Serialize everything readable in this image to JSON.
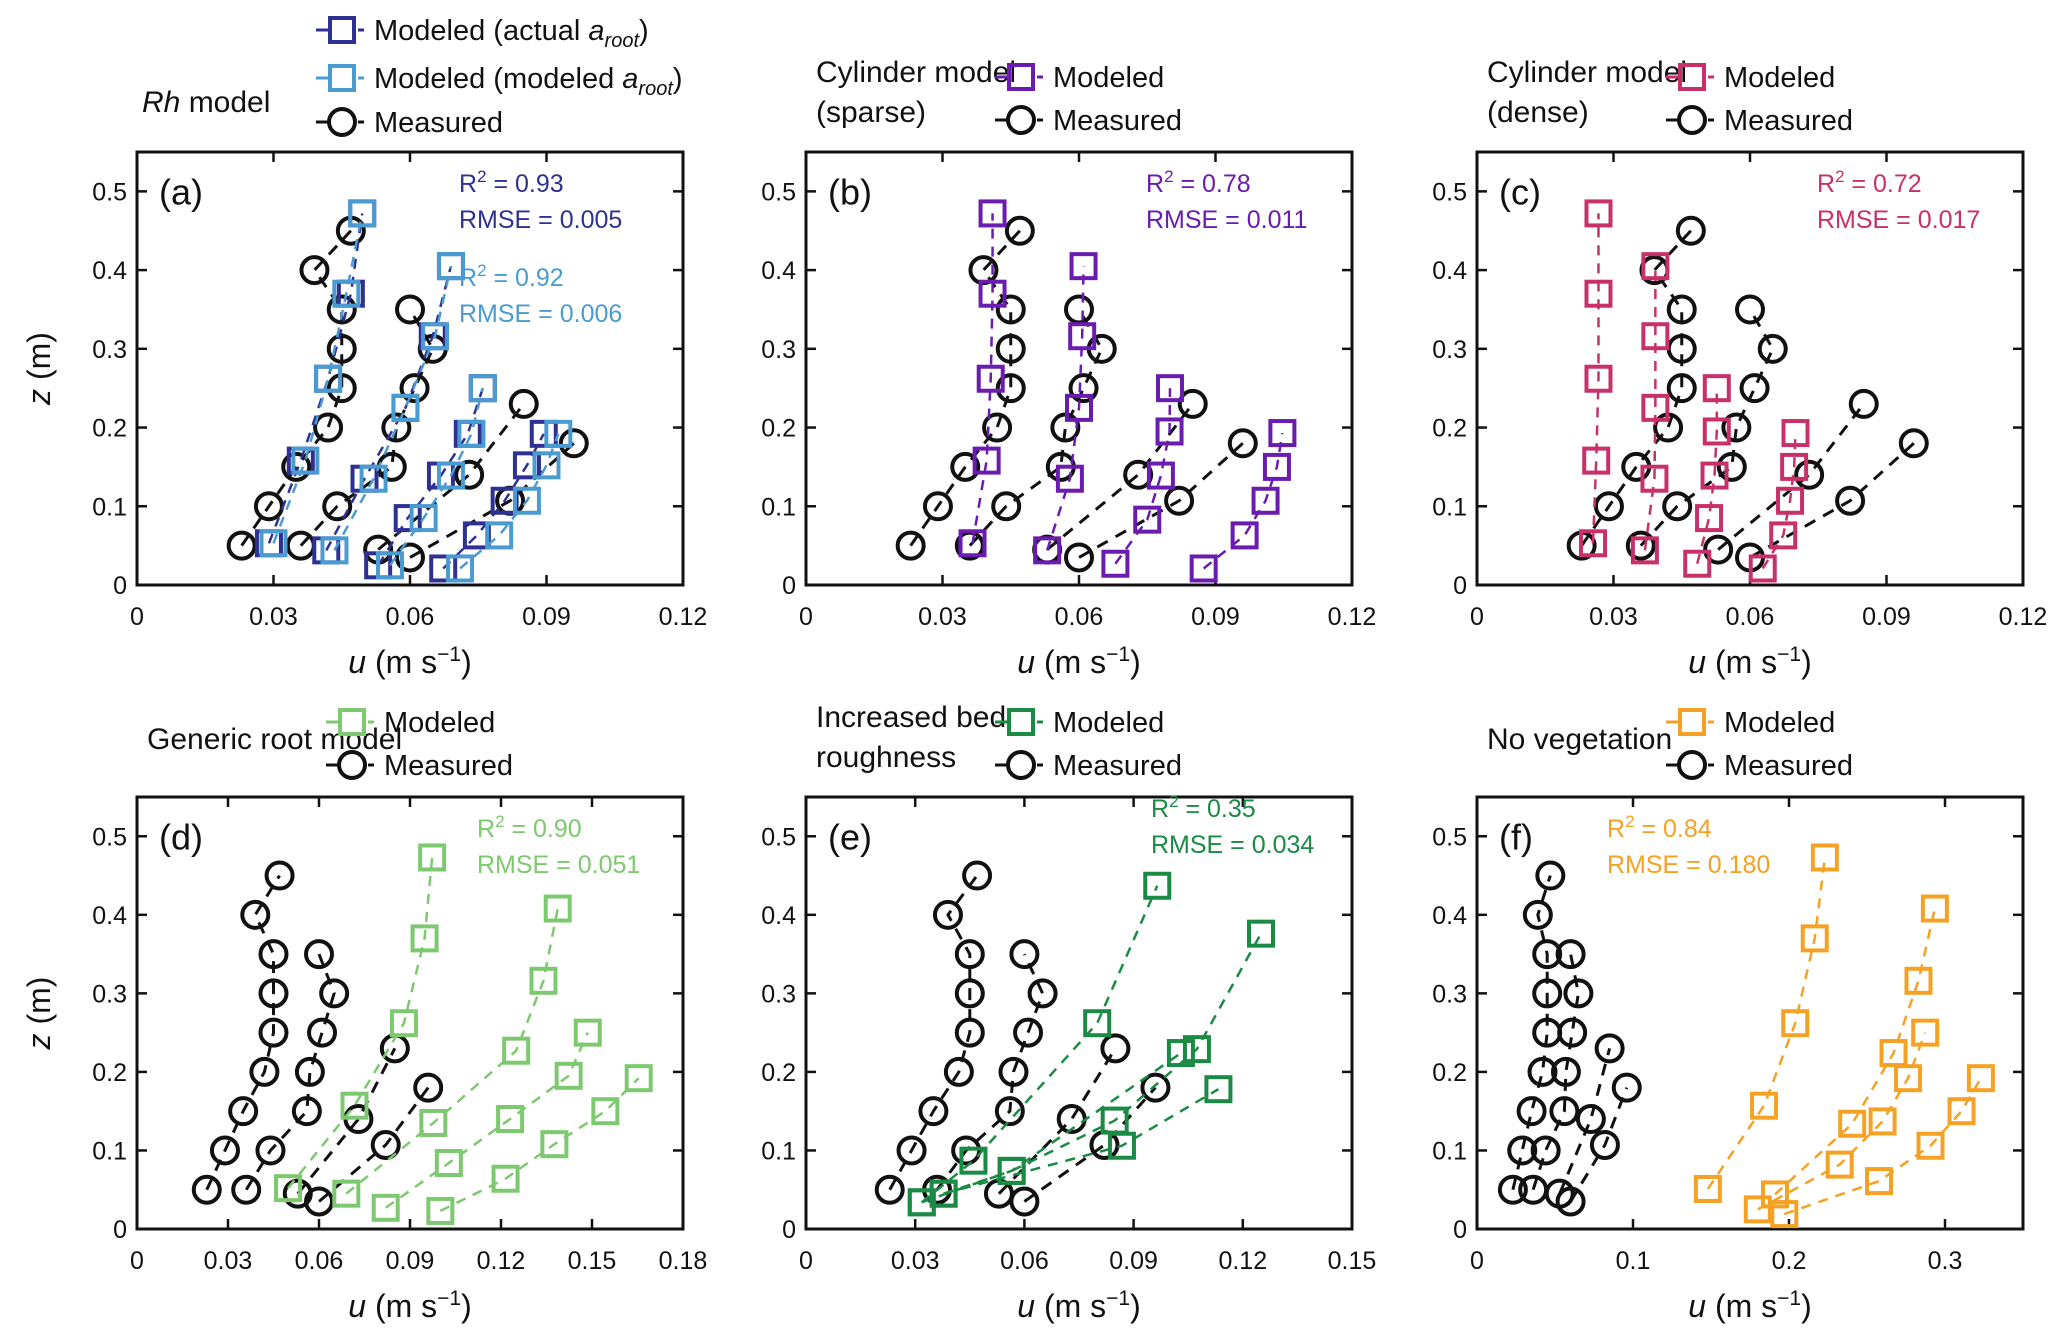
{
  "figure": {
    "ylabel": "z (m)",
    "xlabel_var": "u",
    "xlabel_unit": "(m s",
    "xlabel_exp": "−1",
    "xlabel_close": ")"
  },
  "legend_labels": {
    "measured": "Measured",
    "modeled": "Modeled",
    "modeled_actual_prefix": "Modeled (actual ",
    "modeled_modeled_prefix": "Modeled (modeled ",
    "a_root_var": "a",
    "a_root_sub": "root",
    "paren_close": ")"
  },
  "colors": {
    "measured": "#111111",
    "actual_aroot": "#2e3192",
    "modeled_aroot": "#4a9bd1",
    "cylinder_sparse": "#6a1bb0",
    "cylinder_dense": "#c8306a",
    "generic_root": "#7dc96f",
    "bed_roughness": "#1a8a45",
    "no_vegetation": "#f5a124"
  },
  "chart_data": [
    {
      "type": "line",
      "panel": "(a)",
      "title_italic": "Rh",
      "title_rest": " model",
      "xlim": [
        0,
        0.12
      ],
      "ylim": [
        0,
        0.55
      ],
      "xticks": [
        "0",
        "0.03",
        "0.06",
        "0.09",
        "0.12"
      ],
      "yticks": [
        "0",
        "0.1",
        "0.2",
        "0.3",
        "0.4",
        "0.5"
      ],
      "xlabel": "u (m s−1)",
      "ylabel": "z (m)",
      "grid": false,
      "legend": [
        "Modeled (actual a_root)",
        "Modeled (modeled a_root)",
        "Measured"
      ],
      "stats": [
        {
          "series": "actual_aroot",
          "r2": "R² = 0.93",
          "rmse": "RMSE = 0.005"
        },
        {
          "series": "modeled_aroot",
          "r2": "R² = 0.92",
          "rmse": "RMSE = 0.006"
        }
      ],
      "series": [
        {
          "name": "Measured",
          "key": "measured",
          "marker": "circle",
          "profiles": [
            {
              "u": [
                0.023,
                0.029,
                0.035,
                0.042,
                0.045,
                0.045,
                0.045,
                0.039,
                0.047
              ],
              "z": [
                0.05,
                0.1,
                0.15,
                0.2,
                0.25,
                0.3,
                0.35,
                0.4,
                0.45
              ]
            },
            {
              "u": [
                0.036,
                0.044,
                0.056,
                0.057,
                0.061,
                0.065,
                0.06
              ],
              "z": [
                0.05,
                0.1,
                0.15,
                0.2,
                0.25,
                0.3,
                0.35
              ]
            },
            {
              "u": [
                0.053,
                0.073,
                0.085
              ],
              "z": [
                0.045,
                0.14,
                0.23
              ]
            },
            {
              "u": [
                0.06,
                0.082,
                0.096
              ],
              "z": [
                0.035,
                0.107,
                0.18
              ]
            }
          ]
        },
        {
          "name": "Modeled (actual a_root)",
          "key": "actual_aroot",
          "marker": "square",
          "profiles": [
            {
              "u": [
                0.029,
                0.036,
                0.042,
                0.047,
                0.0495
              ],
              "z": [
                0.053,
                0.158,
                0.262,
                0.37,
                0.472
              ]
            },
            {
              "u": [
                0.0416,
                0.05,
                0.059,
                0.065,
                0.069
              ],
              "z": [
                0.044,
                0.135,
                0.225,
                0.316,
                0.405
              ]
            },
            {
              "u": [
                0.053,
                0.0595,
                0.0668,
                0.0727,
                0.076
              ],
              "z": [
                0.025,
                0.085,
                0.139,
                0.192,
                0.25
              ]
            },
            {
              "u": [
                0.0673,
                0.0747,
                0.0808,
                0.0857,
                0.0894
              ],
              "z": [
                0.021,
                0.063,
                0.107,
                0.152,
                0.192
              ]
            }
          ]
        },
        {
          "name": "Modeled (modeled a_root)",
          "key": "modeled_aroot",
          "marker": "square",
          "profiles": [
            {
              "u": [
                0.03,
                0.037,
                0.042,
                0.046,
                0.0495
              ],
              "z": [
                0.053,
                0.158,
                0.262,
                0.37,
                0.472
              ]
            },
            {
              "u": [
                0.0434,
                0.052,
                0.059,
                0.0655,
                0.069
              ],
              "z": [
                0.044,
                0.135,
                0.225,
                0.316,
                0.405
              ]
            },
            {
              "u": [
                0.0556,
                0.063,
                0.069,
                0.0735,
                0.076
              ],
              "z": [
                0.025,
                0.085,
                0.139,
                0.192,
                0.25
              ]
            },
            {
              "u": [
                0.071,
                0.0796,
                0.0857,
                0.09,
                0.0926
              ],
              "z": [
                0.021,
                0.063,
                0.107,
                0.152,
                0.192
              ]
            }
          ]
        }
      ]
    },
    {
      "type": "line",
      "panel": "(b)",
      "title_line1": "Cylinder model",
      "title_line2": "(sparse)",
      "xlim": [
        0,
        0.12
      ],
      "ylim": [
        0,
        0.55
      ],
      "xticks": [
        "0",
        "0.03",
        "0.06",
        "0.09",
        "0.12"
      ],
      "yticks": [
        "0",
        "0.1",
        "0.2",
        "0.3",
        "0.4",
        "0.5"
      ],
      "xlabel": "u (m s−1)",
      "ylabel": "z (m)",
      "grid": false,
      "legend": [
        "Modeled",
        "Measured"
      ],
      "stats": [
        {
          "series": "cylinder_sparse",
          "r2": "R² = 0.78",
          "rmse": "RMSE = 0.011"
        }
      ],
      "series": [
        {
          "name": "Measured",
          "key": "measured",
          "marker": "circle",
          "profiles": "same_as_a"
        },
        {
          "name": "Modeled",
          "key": "cylinder_sparse",
          "marker": "square",
          "profiles": [
            {
              "u": [
                0.0366,
                0.0397,
                0.0406,
                0.041,
                0.041
              ],
              "z": [
                0.053,
                0.158,
                0.262,
                0.37,
                0.472
              ]
            },
            {
              "u": [
                0.053,
                0.058,
                0.06,
                0.0607,
                0.061
              ],
              "z": [
                0.044,
                0.135,
                0.225,
                0.316,
                0.405
              ]
            },
            {
              "u": [
                0.068,
                0.075,
                0.078,
                0.0799,
                0.08
              ],
              "z": [
                0.027,
                0.083,
                0.139,
                0.195,
                0.25
              ]
            },
            {
              "u": [
                0.0874,
                0.0964,
                0.101,
                0.1035,
                0.1047
              ],
              "z": [
                0.021,
                0.063,
                0.107,
                0.15,
                0.193
              ]
            }
          ]
        }
      ]
    },
    {
      "type": "line",
      "panel": "(c)",
      "title_line1": "Cylinder model",
      "title_line2": "(dense)",
      "xlim": [
        0,
        0.12
      ],
      "ylim": [
        0,
        0.55
      ],
      "xticks": [
        "0",
        "0.03",
        "0.06",
        "0.09",
        "0.12"
      ],
      "yticks": [
        "0",
        "0.1",
        "0.2",
        "0.3",
        "0.4",
        "0.5"
      ],
      "xlabel": "u (m s−1)",
      "ylabel": "z (m)",
      "grid": false,
      "legend": [
        "Modeled",
        "Measured"
      ],
      "stats": [
        {
          "series": "cylinder_dense",
          "r2": "R² = 0.72",
          "rmse": "RMSE = 0.017"
        }
      ],
      "series": [
        {
          "name": "Measured",
          "key": "measured",
          "marker": "circle",
          "profiles": "same_as_a"
        },
        {
          "name": "Modeled",
          "key": "cylinder_dense",
          "marker": "square",
          "profiles": [
            {
              "u": [
                0.0255,
                0.0262,
                0.0267,
                0.0267,
                0.0267
              ],
              "z": [
                0.053,
                0.158,
                0.262,
                0.37,
                0.472
              ]
            },
            {
              "u": [
                0.0369,
                0.039,
                0.0392,
                0.0392,
                0.0392
              ],
              "z": [
                0.044,
                0.135,
                0.225,
                0.316,
                0.405
              ]
            },
            {
              "u": [
                0.0484,
                0.051,
                0.0522,
                0.0527,
                0.0527
              ],
              "z": [
                0.027,
                0.085,
                0.139,
                0.195,
                0.25
              ]
            },
            {
              "u": [
                0.0628,
                0.0673,
                0.0688,
                0.0697,
                0.07
              ],
              "z": [
                0.021,
                0.063,
                0.107,
                0.15,
                0.193
              ]
            }
          ]
        }
      ]
    },
    {
      "type": "line",
      "panel": "(d)",
      "title_line1": "Generic root model",
      "xlim": [
        0,
        0.18
      ],
      "ylim": [
        0,
        0.55
      ],
      "xticks": [
        "0",
        "0.03",
        "0.06",
        "0.09",
        "0.12",
        "0.15",
        "0.18"
      ],
      "yticks": [
        "0",
        "0.1",
        "0.2",
        "0.3",
        "0.4",
        "0.5"
      ],
      "xlabel": "u (m s−1)",
      "ylabel": "z (m)",
      "grid": false,
      "legend": [
        "Modeled",
        "Measured"
      ],
      "stats": [
        {
          "series": "generic_root",
          "r2": "R² = 0.90",
          "rmse": "RMSE = 0.051"
        }
      ],
      "series": [
        {
          "name": "Measured",
          "key": "measured",
          "marker": "circle",
          "profiles": "same_as_a"
        },
        {
          "name": "Modeled",
          "key": "generic_root",
          "marker": "square",
          "profiles": [
            {
              "u": [
                0.0498,
                0.0717,
                0.088,
                0.0948,
                0.0973
              ],
              "z": [
                0.052,
                0.157,
                0.262,
                0.37,
                0.473
              ]
            },
            {
              "u": [
                0.069,
                0.0977,
                0.125,
                0.134,
                0.1387
              ],
              "z": [
                0.045,
                0.135,
                0.227,
                0.316,
                0.408
              ]
            },
            {
              "u": [
                0.082,
                0.1028,
                0.123,
                0.1423,
                0.1486
              ],
              "z": [
                0.027,
                0.084,
                0.14,
                0.195,
                0.25
              ]
            },
            {
              "u": [
                0.1,
                0.1215,
                0.1376,
                0.1544,
                0.1654
              ],
              "z": [
                0.023,
                0.064,
                0.108,
                0.15,
                0.192
              ]
            }
          ]
        }
      ]
    },
    {
      "type": "line",
      "panel": "(e)",
      "title_line1": "Increased bed",
      "title_line2": "roughness",
      "xlim": [
        0,
        0.15
      ],
      "ylim": [
        0,
        0.55
      ],
      "xticks": [
        "0",
        "0.03",
        "0.06",
        "0.09",
        "0.12",
        "0.15"
      ],
      "yticks": [
        "0",
        "0.1",
        "0.2",
        "0.3",
        "0.4",
        "0.5"
      ],
      "xlabel": "u (m s−1)",
      "ylabel": "z (m)",
      "grid": false,
      "legend": [
        "Modeled",
        "Measured"
      ],
      "stats": [
        {
          "series": "bed_roughness",
          "r2": "R² = 0.35",
          "rmse": "RMSE = 0.034"
        }
      ],
      "series": [
        {
          "name": "Measured",
          "key": "measured",
          "marker": "circle",
          "profiles": "same_as_a"
        },
        {
          "name": "Modeled",
          "key": "bed_roughness",
          "marker": "square",
          "profiles": [
            {
              "u": [
                0.0318,
                0.046,
                0.08,
                0.0965
              ],
              "z": [
                0.034,
                0.087,
                0.262,
                0.437
              ]
            },
            {
              "u": [
                0.0378,
                0.0565,
                0.0848,
                0.1074,
                0.125
              ],
              "z": [
                0.045,
                0.074,
                0.138,
                0.229,
                0.376
              ]
            },
            {
              "u": [
                0.0318,
                0.0565,
                0.103
              ],
              "z": [
                0.034,
                0.074,
                0.224
              ]
            },
            {
              "u": [
                0.0378,
                0.0868,
                0.1133
              ],
              "z": [
                0.045,
                0.106,
                0.178
              ]
            }
          ]
        }
      ]
    },
    {
      "type": "line",
      "panel": "(f)",
      "title_line1": "No vegetation",
      "xlim": [
        0,
        0.35
      ],
      "ylim": [
        0,
        0.55
      ],
      "xticks": [
        "0",
        "0.1",
        "0.2",
        "0.3"
      ],
      "yticks": [
        "0",
        "0.1",
        "0.2",
        "0.3",
        "0.4",
        "0.5"
      ],
      "xlabel": "u (m s−1)",
      "ylabel": "z (m)",
      "grid": false,
      "legend": [
        "Modeled",
        "Measured"
      ],
      "stats": [
        {
          "series": "no_vegetation",
          "r2": "R² = 0.84",
          "rmse": "RMSE = 0.180"
        }
      ],
      "series": [
        {
          "name": "Measured",
          "key": "measured",
          "marker": "circle",
          "profiles": "same_as_a"
        },
        {
          "name": "Modeled",
          "key": "no_vegetation",
          "marker": "square",
          "profiles": [
            {
              "u": [
                0.148,
                0.184,
                0.204,
                0.2165,
                0.223
              ],
              "z": [
                0.051,
                0.157,
                0.262,
                0.37,
                0.473
              ]
            },
            {
              "u": [
                0.191,
                0.2405,
                0.267,
                0.283,
                0.2935
              ],
              "z": [
                0.044,
                0.134,
                0.224,
                0.316,
                0.408
              ]
            },
            {
              "u": [
                0.18,
                0.2325,
                0.26,
                0.2763,
                0.2873
              ],
              "z": [
                0.025,
                0.082,
                0.137,
                0.192,
                0.25
              ]
            },
            {
              "u": [
                0.197,
                0.2577,
                0.2907,
                0.3106,
                0.323
              ],
              "z": [
                0.019,
                0.061,
                0.106,
                0.15,
                0.192
              ]
            }
          ]
        }
      ]
    }
  ]
}
